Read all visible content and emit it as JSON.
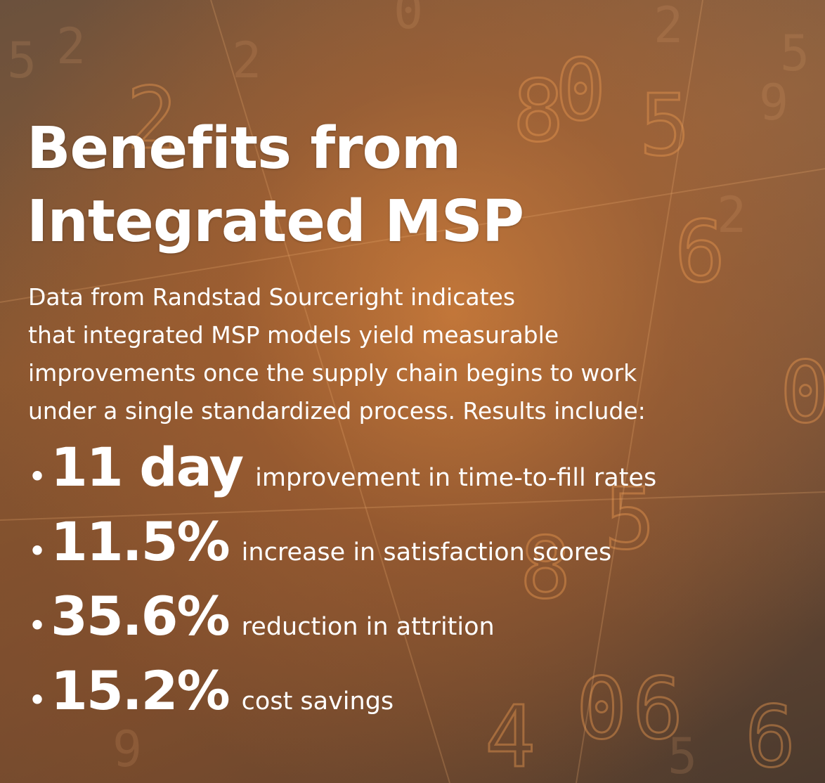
{
  "headline": {
    "line1": "Benefits from",
    "line2": "Integrated MSP"
  },
  "intro": {
    "lines": [
      "Data from Randstad Sourceright indicates",
      "that integrated MSP models yield measurable",
      "improvements once the supply chain begins to work",
      "under a single standardized process. Results include:"
    ]
  },
  "results": [
    {
      "bullet": "•",
      "stat": "11 day",
      "description": "improvement in time-to-fill rates"
    },
    {
      "bullet": "•",
      "stat": "11.5%",
      "description": "increase in satisfaction scores"
    },
    {
      "bullet": "•",
      "stat": "35.6%",
      "description": "reduction in attrition"
    },
    {
      "bullet": "•",
      "stat": "15.2%",
      "description": "cost savings"
    }
  ],
  "colors": {
    "text": "#ffffff",
    "accent_orange": "#d6803a",
    "background_dark": "#5a3f2c"
  }
}
